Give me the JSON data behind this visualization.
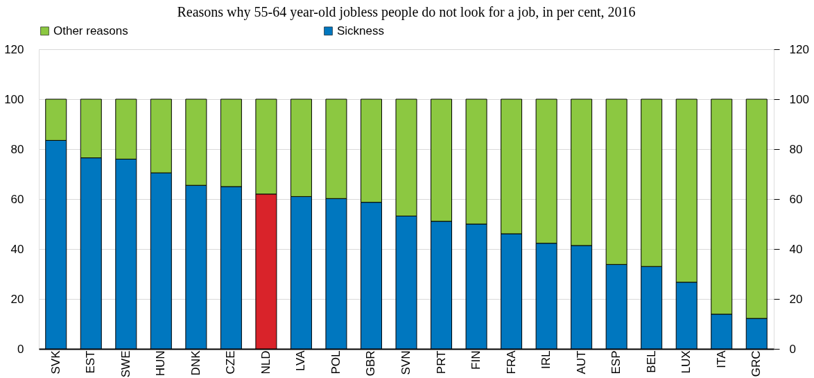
{
  "chart_data": {
    "type": "bar",
    "title": "Reasons why 55-64 year-old jobless people do not look for a job, in per cent, 2016",
    "categories": [
      "SVK",
      "EST",
      "SWE",
      "HUN",
      "DNK",
      "CZE",
      "NLD",
      "LVA",
      "POL",
      "GBR",
      "SVN",
      "PRT",
      "FIN",
      "FRA",
      "IRL",
      "AUT",
      "ESP",
      "BEL",
      "LUX",
      "ITA",
      "GRC"
    ],
    "stacked": true,
    "series": [
      {
        "name": "Sickness",
        "color": "#0077bf",
        "colors": [
          "#0077bf",
          "#0077bf",
          "#0077bf",
          "#0077bf",
          "#0077bf",
          "#0077bf",
          "#d9232a",
          "#0077bf",
          "#0077bf",
          "#0077bf",
          "#0077bf",
          "#0077bf",
          "#0077bf",
          "#0077bf",
          "#0077bf",
          "#0077bf",
          "#0077bf",
          "#0077bf",
          "#0077bf",
          "#0077bf",
          "#0077bf"
        ],
        "values": [
          83.5,
          76.5,
          76,
          70.5,
          65.5,
          65,
          62,
          61,
          60.2,
          58.7,
          53.2,
          51.1,
          50,
          46.1,
          42.3,
          41.4,
          33.8,
          33,
          26.7,
          13.9,
          12.2
        ]
      },
      {
        "name": "Other reasons",
        "color": "#8cc841",
        "values": [
          16.5,
          23.5,
          24,
          29.5,
          34.5,
          35,
          38,
          39,
          39.8,
          41.3,
          46.8,
          48.9,
          50,
          53.9,
          57.7,
          58.6,
          66.2,
          67,
          73.3,
          86.1,
          87.8
        ]
      }
    ],
    "ylim": [
      0,
      120
    ],
    "yticks": [
      0,
      20,
      40,
      60,
      80,
      100,
      120
    ],
    "y2lim": [
      0,
      120
    ],
    "y2ticks": [
      0,
      20,
      40,
      60,
      80,
      100,
      120
    ],
    "grid": "y",
    "legend": "top"
  }
}
